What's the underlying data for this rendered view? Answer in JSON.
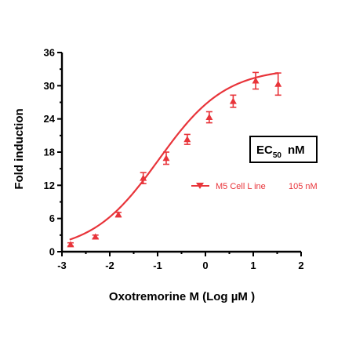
{
  "chart_data": {
    "type": "scatter",
    "xlabel": "Oxotremorine M (Log µM )",
    "ylabel": "Fold induction",
    "xlim": [
      -3,
      2
    ],
    "ylim": [
      0,
      36
    ],
    "x_ticks": [
      "-3",
      "-2",
      "-1",
      "0",
      "1",
      "2"
    ],
    "y_ticks": [
      "0",
      "6",
      "12",
      "18",
      "24",
      "30",
      "36"
    ],
    "ec50_box": {
      "main": "EC",
      "sub": "50",
      "unit": "nM"
    },
    "legend": {
      "series_label": "M5  Cell L ine",
      "ec50_value": "105 nM"
    },
    "color": "#e8343a",
    "series": [
      {
        "name": "M5  Cell L ine",
        "x": [
          -2.82,
          -2.3,
          -1.82,
          -1.3,
          -0.82,
          -0.38,
          0.08,
          0.58,
          1.05,
          1.52
        ],
        "y": [
          1.3,
          2.7,
          6.7,
          13.3,
          16.9,
          20.3,
          24.3,
          27.2,
          30.9,
          30.3
        ],
        "err": [
          0.3,
          0.3,
          0.4,
          1.0,
          1.1,
          0.9,
          1.0,
          1.1,
          1.5,
          2.0
        ]
      }
    ],
    "fit_curve": {
      "bottom": 0,
      "top": 33.2,
      "logEC50": -0.98,
      "hill": 0.62
    }
  }
}
